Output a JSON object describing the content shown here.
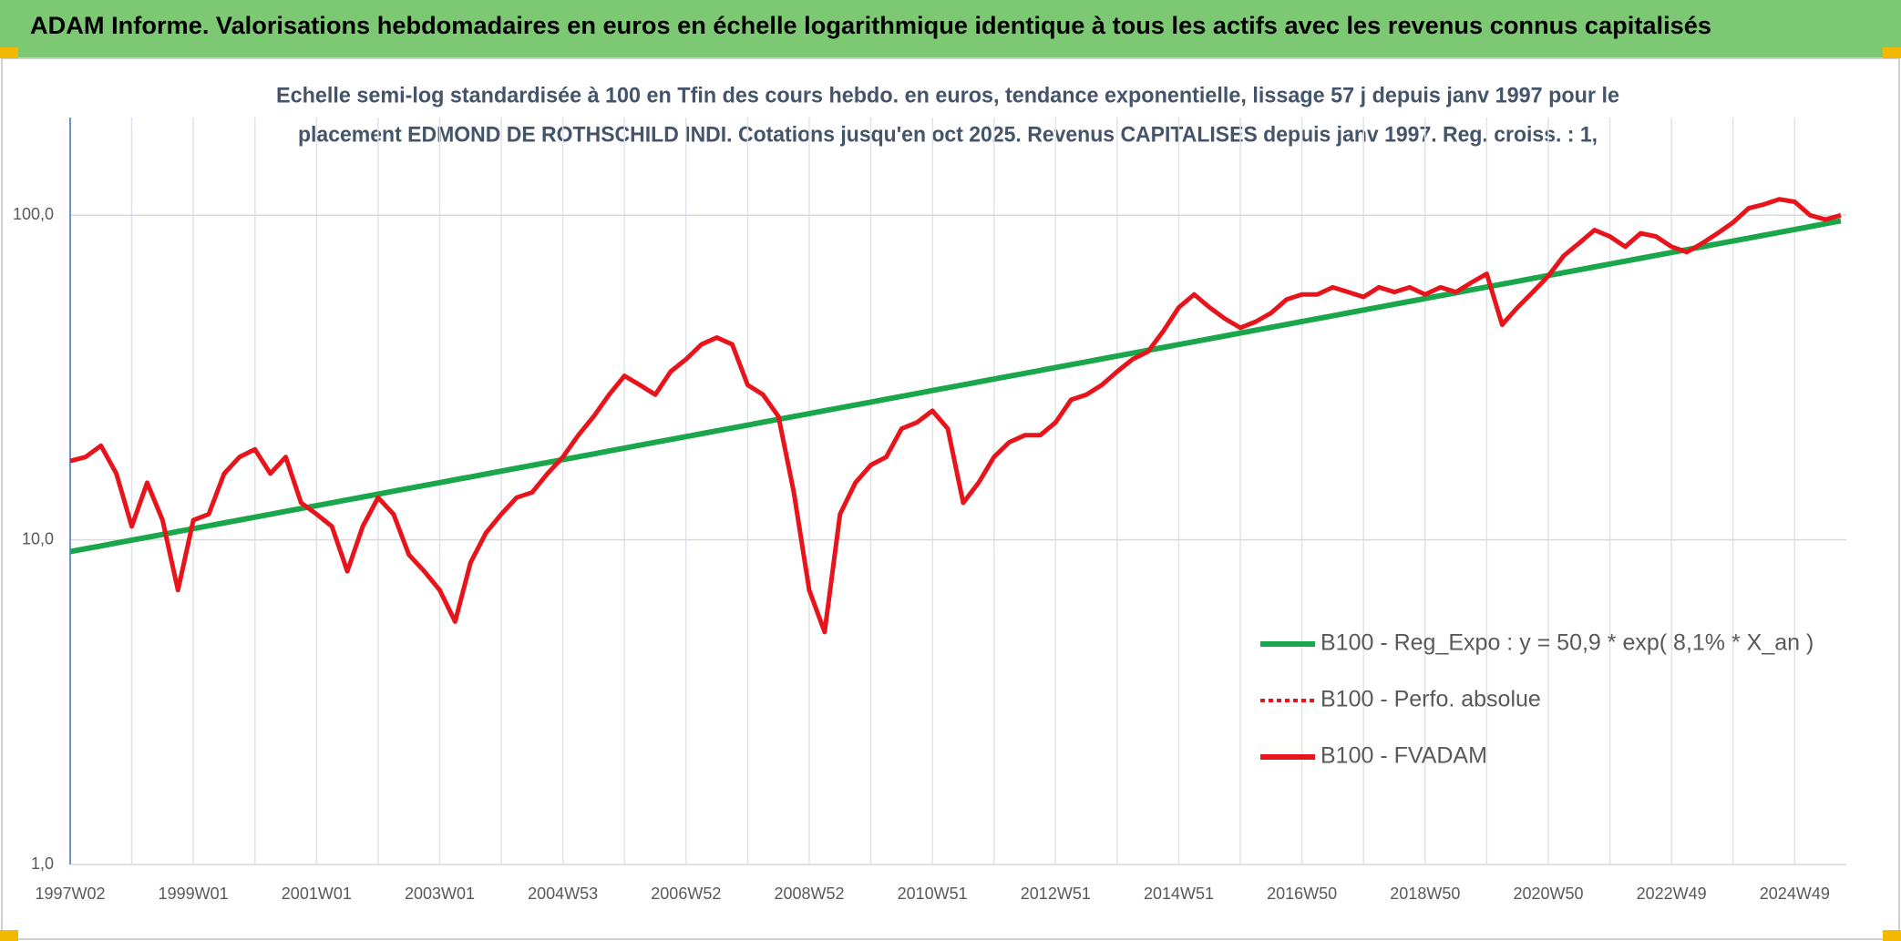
{
  "chart_data": {
    "type": "line",
    "title": "ADAM Informe. Valorisations hebdomadaires en euros en échelle logarithmique identique à tous les actifs avec les revenus connus capitalisés",
    "subtitle": [
      "Echelle semi-log standardisée à 100 en Tfin des cours hebdo. en euros, tendance exponentielle, lissage 57 j depuis janv 1997 pour le",
      "placement EDMOND DE ROTHSCHILD INDI. Cotations jusqu'en oct 2025. Revenus CAPITALISES depuis janv 1997. Reg. croiss. : 1,"
    ],
    "log_scale": true,
    "grid": true,
    "legend": "right",
    "ylim": [
      1,
      200
    ],
    "yticks": [
      {
        "value": 1,
        "label": "1,0"
      },
      {
        "value": 10,
        "label": "10,0"
      },
      {
        "value": 100,
        "label": "100,0"
      }
    ],
    "categories": [
      "1997W02",
      null,
      null,
      null,
      null,
      null,
      null,
      null,
      "1999W01",
      null,
      null,
      null,
      null,
      null,
      null,
      null,
      "2001W01",
      null,
      null,
      null,
      null,
      null,
      null,
      null,
      "2003W01",
      null,
      null,
      null,
      null,
      null,
      null,
      null,
      "2004W53",
      null,
      null,
      null,
      null,
      null,
      null,
      null,
      "2006W52",
      null,
      null,
      null,
      null,
      null,
      null,
      null,
      "2008W52",
      null,
      null,
      null,
      null,
      null,
      null,
      null,
      "2010W51",
      null,
      null,
      null,
      null,
      null,
      null,
      null,
      "2012W51",
      null,
      null,
      null,
      null,
      null,
      null,
      null,
      "2014W51",
      null,
      null,
      null,
      null,
      null,
      null,
      null,
      "2016W50",
      null,
      null,
      null,
      null,
      null,
      null,
      null,
      "2018W50",
      null,
      null,
      null,
      null,
      null,
      null,
      null,
      "2020W50",
      null,
      null,
      null,
      null,
      null,
      null,
      null,
      "2022W49",
      null,
      null,
      null,
      null,
      null,
      null,
      null,
      "2024W49",
      null,
      null,
      null
    ],
    "series": [
      {
        "name": "B100 - Reg_Expo : y = 50,9 * exp( 8,1% *  X_an )",
        "color": "#1aa64a",
        "style": "solid",
        "values": [
          9.2,
          9.39,
          9.58,
          9.78,
          9.98,
          10.18,
          10.39,
          10.61,
          10.83,
          11.05,
          11.28,
          11.51,
          11.75,
          11.99,
          12.24,
          12.49,
          12.75,
          13.01,
          13.28,
          13.55,
          13.83,
          14.12,
          14.41,
          14.71,
          15.01,
          15.32,
          15.63,
          15.95,
          16.28,
          16.62,
          16.96,
          17.31,
          17.67,
          18.03,
          18.4,
          18.78,
          19.17,
          19.57,
          19.97,
          20.38,
          20.8,
          21.23,
          21.67,
          22.11,
          22.57,
          23.04,
          23.51,
          24.0,
          24.49,
          25.0,
          25.51,
          26.04,
          26.57,
          27.12,
          27.68,
          28.25,
          28.84,
          29.43,
          30.04,
          30.66,
          31.29,
          31.93,
          32.59,
          33.26,
          33.95,
          34.65,
          35.36,
          36.09,
          36.84,
          37.6,
          38.37,
          39.16,
          39.97,
          40.79,
          41.63,
          42.49,
          43.37,
          44.26,
          45.17,
          46.1,
          47.05,
          48.02,
          49.01,
          50.02,
          51.05,
          52.1,
          53.18,
          54.27,
          55.39,
          56.53,
          57.7,
          58.89,
          60.1,
          61.34,
          62.6,
          63.89,
          65.21,
          66.55,
          67.92,
          69.32,
          70.75,
          72.21,
          73.7,
          75.22,
          76.77,
          78.35,
          79.97,
          81.62,
          83.3,
          85.02,
          86.77,
          88.56,
          90.38,
          92.25,
          94.15,
          96.09
        ]
      },
      {
        "name": "B100 - Perfo. absolue",
        "color": "#e8141c",
        "style": "dotted",
        "values": [
          null,
          null,
          null,
          null,
          null,
          null,
          null,
          null,
          null,
          null,
          null,
          null,
          null,
          null,
          null,
          null,
          null,
          null,
          null,
          null,
          null,
          null,
          null,
          null,
          null,
          null,
          null,
          null,
          null,
          null,
          null,
          null,
          null,
          null,
          null,
          null,
          null,
          null,
          null,
          null,
          null,
          null,
          null,
          null,
          null,
          null,
          null,
          null,
          null,
          null,
          null,
          null,
          null,
          null,
          null,
          null,
          null,
          null,
          null,
          null,
          null,
          null,
          null,
          null,
          null,
          null,
          null,
          null,
          null,
          null,
          null,
          null,
          null,
          null,
          null,
          null,
          null,
          null,
          null,
          null,
          null,
          null,
          null,
          null,
          null,
          null,
          null,
          null,
          null,
          null,
          null,
          null,
          null,
          null,
          null,
          null,
          null,
          null,
          null,
          null,
          null,
          null,
          null,
          null,
          null,
          null,
          null,
          null,
          null,
          null,
          null,
          null,
          null,
          null,
          null,
          null
        ]
      },
      {
        "name": "B100 - FVADAM",
        "color": "#e8141c",
        "style": "solid",
        "values": [
          17.5,
          18,
          19.5,
          16,
          11,
          15,
          11.5,
          7,
          11.5,
          12,
          16,
          18,
          19,
          16,
          18,
          13,
          12,
          11,
          8,
          11,
          13.5,
          12,
          9,
          8,
          7,
          5.6,
          8.5,
          10.5,
          12,
          13.5,
          14,
          16,
          18,
          21,
          24,
          28,
          32,
          30,
          28,
          33,
          36,
          40,
          42,
          40,
          30,
          28,
          24,
          14,
          7,
          5.2,
          12,
          15,
          17,
          18,
          22,
          23,
          25,
          22,
          13,
          15,
          18,
          20,
          21,
          21,
          23,
          27,
          28,
          30,
          33,
          36,
          38,
          44,
          52,
          57,
          52,
          48,
          45,
          47,
          50,
          55,
          57,
          57,
          60,
          58,
          56,
          60,
          58,
          60,
          57,
          60,
          58,
          62,
          66,
          46,
          52,
          58,
          65,
          75,
          82,
          90,
          86,
          80,
          88,
          86,
          80,
          77,
          82,
          88,
          95,
          105,
          108,
          112,
          110,
          100,
          97,
          100
        ]
      }
    ]
  }
}
